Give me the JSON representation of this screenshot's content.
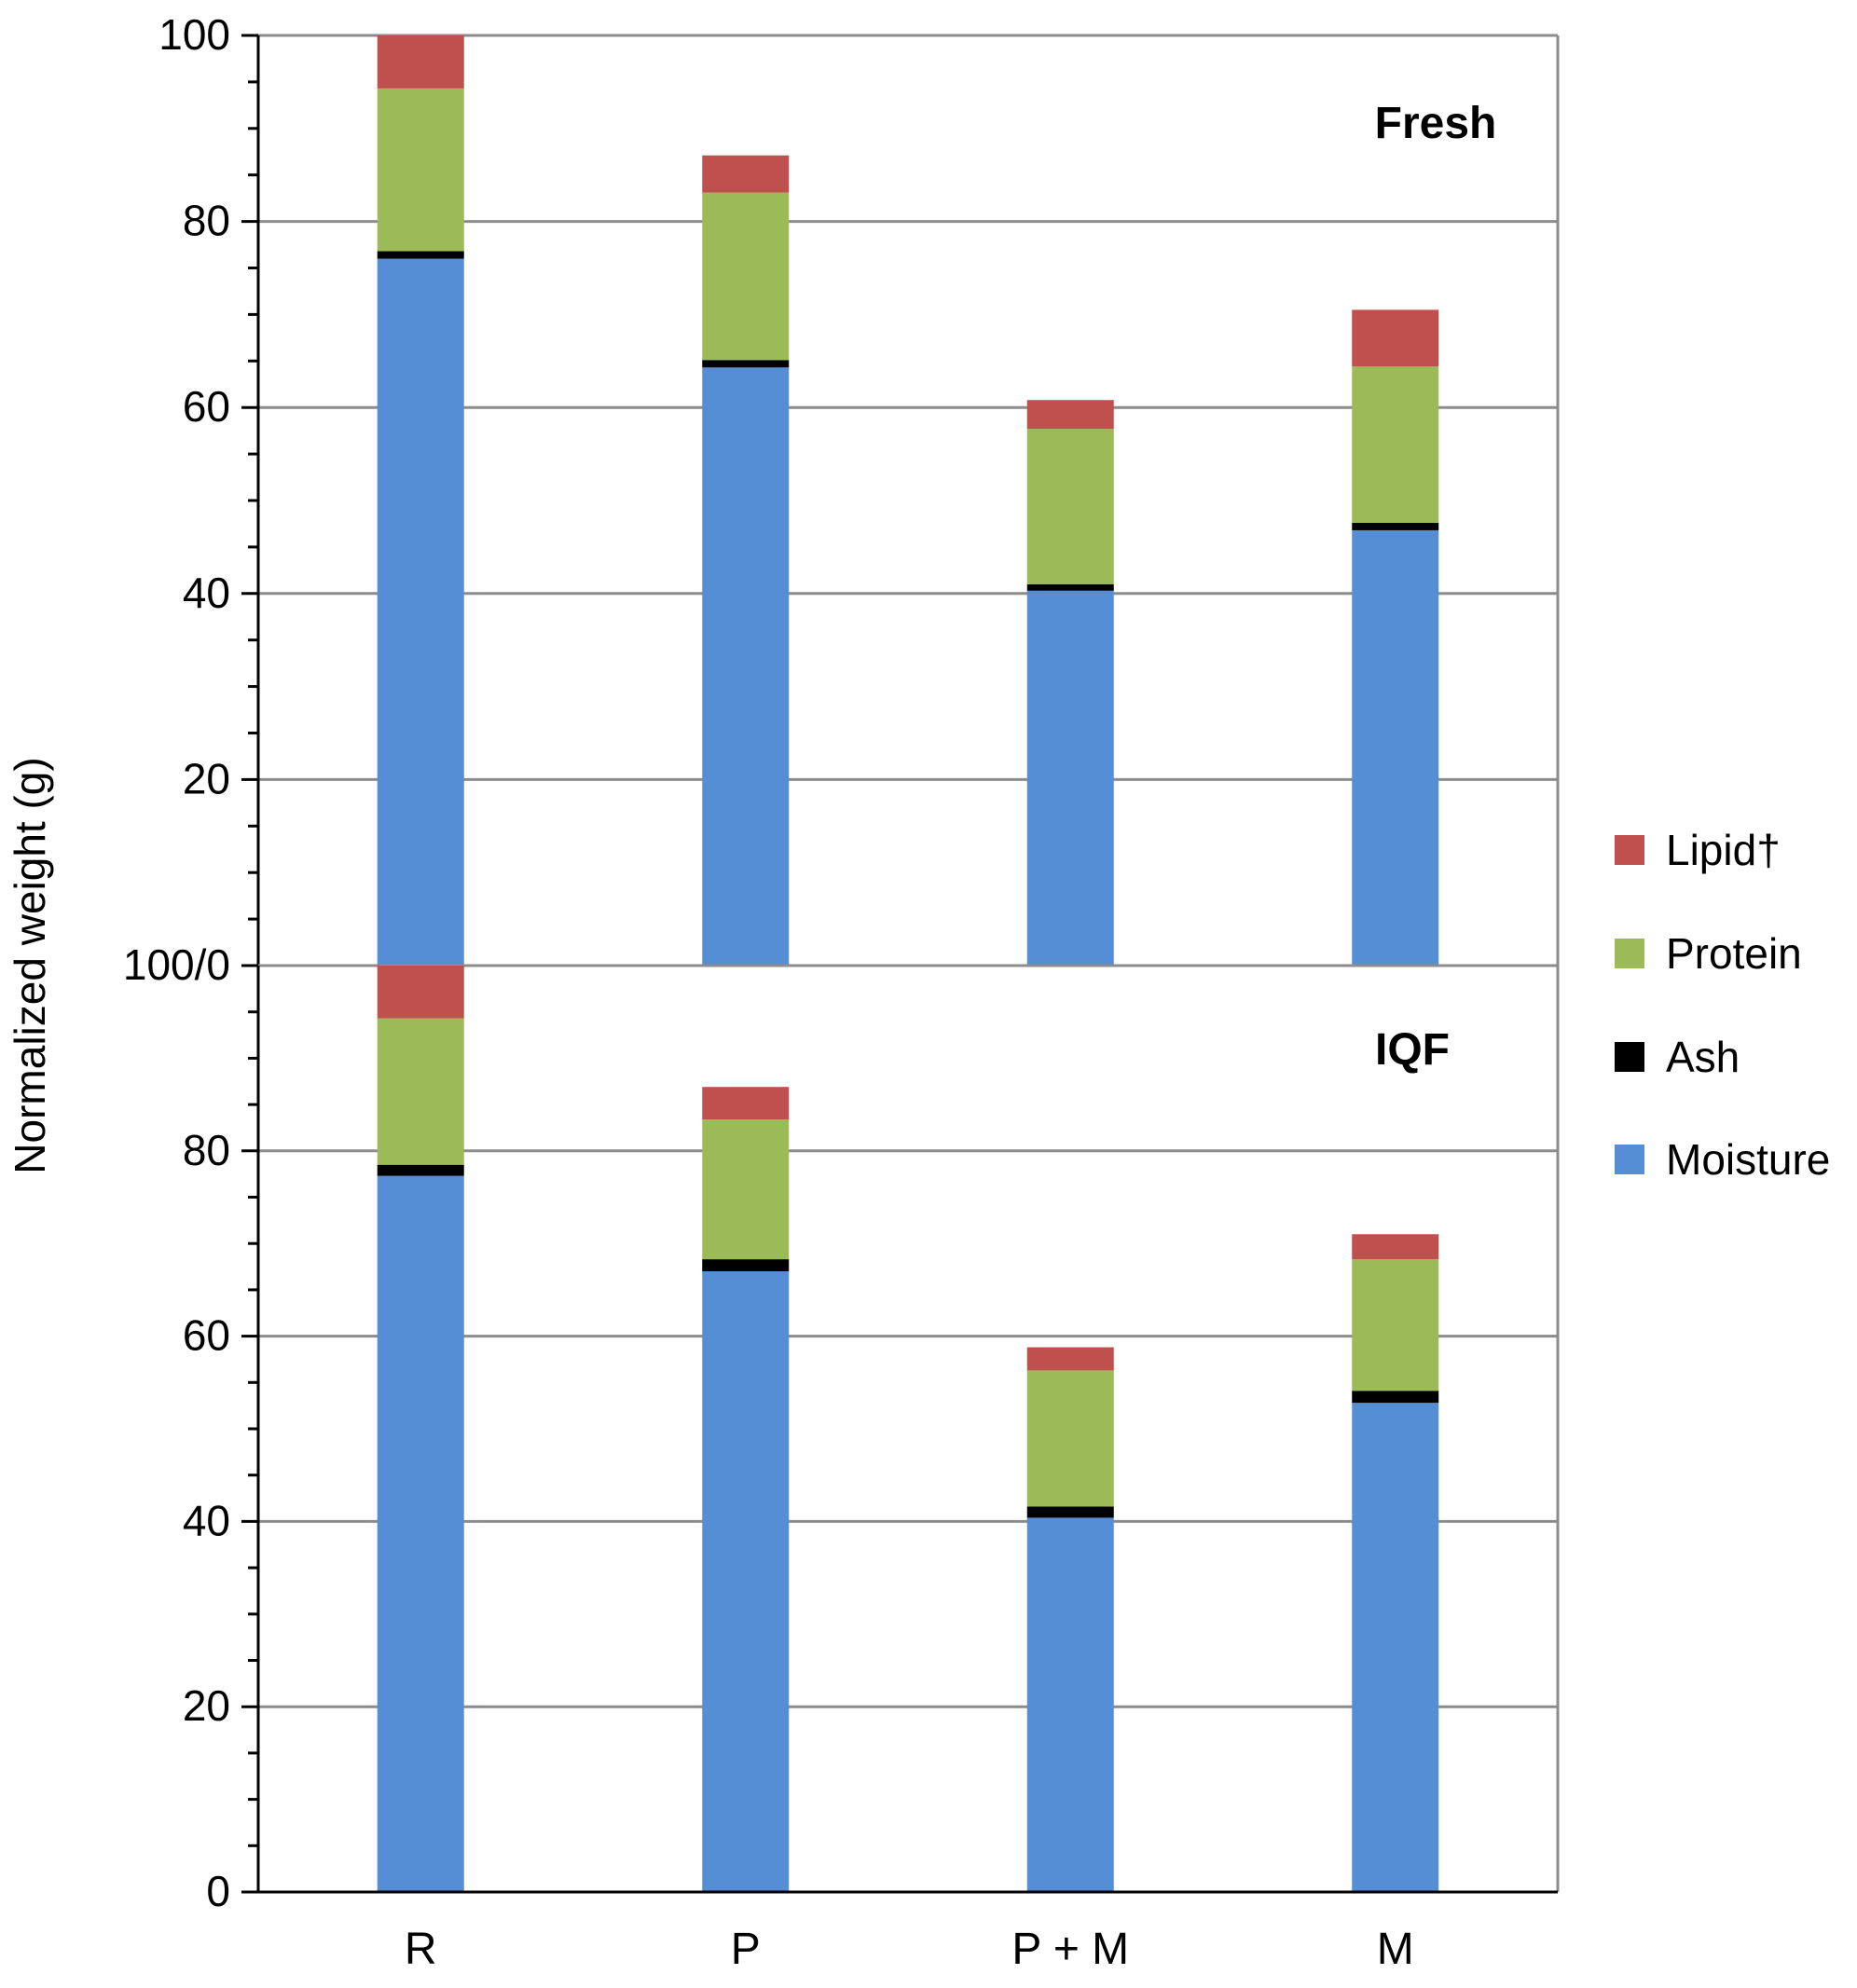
{
  "chart_data": {
    "type": "bar",
    "stacked": true,
    "categories": [
      "R",
      "P",
      "P + M",
      "M"
    ],
    "ylabel": "Normalized weight (g)",
    "ylim": [
      0,
      100
    ],
    "yticks": [
      0,
      20,
      40,
      60,
      80,
      100
    ],
    "y_tick_labels_lower": [
      "0",
      "20",
      "40",
      "60",
      "80"
    ],
    "y_tick_labels_upper": [
      "100/0",
      "20",
      "40",
      "60",
      "80",
      "100"
    ],
    "grid": true,
    "legend_position": "right",
    "legend": [
      "Lipid†",
      "Protein",
      "Ash",
      "Moisture"
    ],
    "colors": {
      "Moisture": "#558ed5",
      "Ash": "#000000",
      "Protein": "#9bbb59",
      "Lipid": "#c0504d",
      "grid": "#8c8c8c",
      "axis": "#000000"
    },
    "panels": [
      {
        "label": "Fresh",
        "series": [
          {
            "name": "Moisture",
            "values": [
              76.0,
              64.3,
              40.3,
              46.8
            ]
          },
          {
            "name": "Ash",
            "values": [
              0.8,
              0.8,
              0.7,
              0.8
            ]
          },
          {
            "name": "Protein",
            "values": [
              17.5,
              18.0,
              16.7,
              16.8
            ]
          },
          {
            "name": "Lipid†",
            "values": [
              5.7,
              4.0,
              3.1,
              6.1
            ]
          }
        ]
      },
      {
        "label": "IQF",
        "series": [
          {
            "name": "Moisture",
            "values": [
              77.3,
              67.0,
              40.4,
              52.8
            ]
          },
          {
            "name": "Ash",
            "values": [
              1.2,
              1.3,
              1.2,
              1.3
            ]
          },
          {
            "name": "Protein",
            "values": [
              15.8,
              15.1,
              14.7,
              14.2
            ]
          },
          {
            "name": "Lipid†",
            "values": [
              5.7,
              3.5,
              2.5,
              2.7
            ]
          }
        ]
      }
    ]
  }
}
